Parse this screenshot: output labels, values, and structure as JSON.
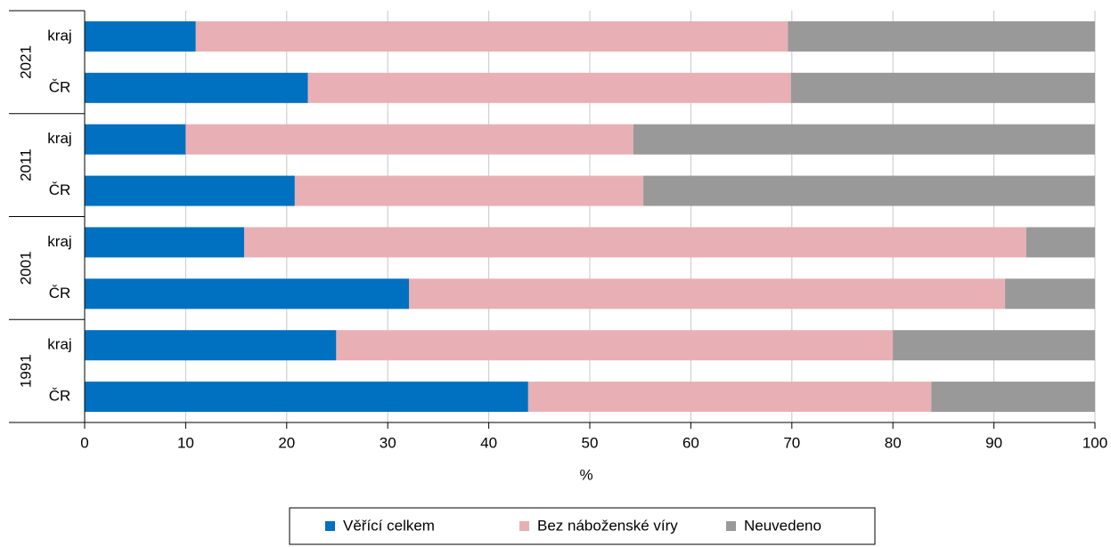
{
  "chart_data": {
    "type": "stacked-barh",
    "x_label": "%",
    "groups": [
      "2021",
      "2011",
      "2001",
      "1991"
    ],
    "categories": [
      "kraj",
      "ČR",
      "kraj",
      "ČR",
      "kraj",
      "ČR",
      "kraj",
      "ČR"
    ],
    "series": [
      {
        "name": "Věřící celkem",
        "color": "#0070c0",
        "values": [
          11,
          22.1,
          10,
          20.8,
          15.8,
          32.1,
          24.9,
          43.9
        ]
      },
      {
        "name": "Bez náboženské víry",
        "color": "#e8b0b4",
        "values": [
          58.6,
          47.8,
          44.3,
          34.5,
          77.4,
          59.0,
          55.1,
          39.9
        ]
      },
      {
        "name": "Neuvedeno",
        "color": "#999999",
        "values": [
          30.4,
          30.1,
          45.7,
          44.7,
          6.8,
          8.9,
          20.0,
          16.2
        ]
      }
    ],
    "xlim": [
      0,
      100
    ],
    "xticks": [
      0,
      10,
      20,
      30,
      40,
      50,
      60,
      70,
      80,
      90,
      100
    ],
    "grid": true,
    "legend": "bottom"
  }
}
